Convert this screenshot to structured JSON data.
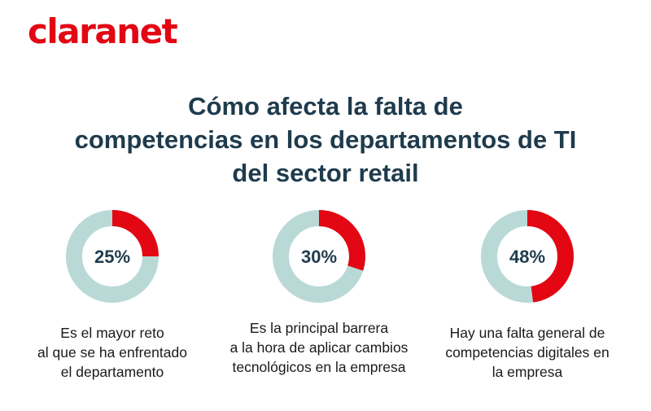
{
  "brand": {
    "logo_text": "claranet",
    "color": "#e30613"
  },
  "title_lines": [
    "Cómo afecta la falta de",
    "competencias en los departamentos de TI",
    "del sector retail"
  ],
  "colors": {
    "accent": "#e30613",
    "track": "#b9d9d6",
    "text_dark": "#1f3b4d"
  },
  "chart_data": [
    {
      "type": "pie",
      "variant": "donut",
      "value": 25,
      "label": "25%",
      "description_lines": [
        "Es el mayor reto",
        "al que se ha enfrentado",
        "el departamento"
      ]
    },
    {
      "type": "pie",
      "variant": "donut",
      "value": 30,
      "label": "30%",
      "description_lines": [
        "Es la principal barrera",
        "a la hora de aplicar cambios",
        "tecnológicos en la empresa"
      ]
    },
    {
      "type": "pie",
      "variant": "donut",
      "value": 48,
      "label": "48%",
      "description_lines": [
        "Hay una falta general de",
        "competencias digitales en",
        "la empresa"
      ]
    }
  ]
}
